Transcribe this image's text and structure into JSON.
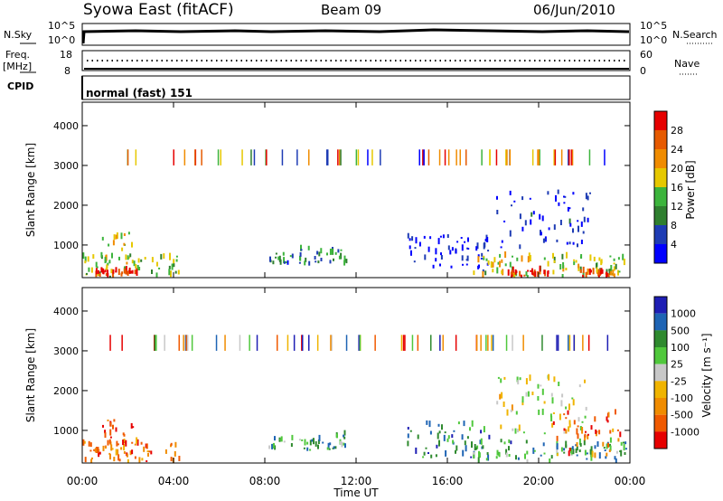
{
  "header": {
    "title": "Syowa East (fitACF)",
    "beam": "Beam 09",
    "date": "06/Jun/2010"
  },
  "top_panels": {
    "nsky_label": "N.Sky",
    "nsearch_label": "N.Search",
    "nsky_ticks": [
      "10^5",
      "10^0"
    ],
    "nsearch_ticks": [
      "10^5",
      "10^0"
    ],
    "freq_label": "Freq.",
    "freq_unit": "[MHz]",
    "freq_ticks": [
      "18",
      "8"
    ],
    "nave_label": "Nave",
    "nave_ticks": [
      "60",
      "0"
    ],
    "cpid_label": "CPID",
    "cpid_value": "normal (fast) 151"
  },
  "colors": {
    "power": [
      "#0000ff",
      "#1e3cb4",
      "#2f7f2f",
      "#3cb43c",
      "#e6c800",
      "#f08c00",
      "#e65a00",
      "#e60000"
    ],
    "velocity": [
      "#e60000",
      "#f05a00",
      "#f08c00",
      "#f0b400",
      "#c8c8c8",
      "#50c83c",
      "#2f8a2f",
      "#1e64b4",
      "#1e1eb4"
    ]
  },
  "chart_data": [
    {
      "type": "heatmap",
      "name": "power",
      "xlabel": "Time UT",
      "ylabel": "Slant Range [km]",
      "x_ticks": [
        "00:00",
        "04:00",
        "08:00",
        "12:00",
        "16:00",
        "20:00",
        "00:00"
      ],
      "y_ticks": [
        "1000",
        "2000",
        "3000",
        "4000"
      ],
      "xlim_hours": [
        0,
        24
      ],
      "ylim_km": [
        180,
        4590
      ],
      "colorbar": {
        "label": "Power [dB]",
        "ticks": [
          "4",
          "8",
          "12",
          "16",
          "20",
          "24",
          "28"
        ],
        "range": [
          0,
          30
        ]
      },
      "regions": [
        {
          "t0": 0.0,
          "t1": 4.3,
          "r0": 180,
          "r1": 700,
          "level": 0.45
        },
        {
          "t0": 0.8,
          "t1": 2.2,
          "r0": 500,
          "r1": 1300,
          "level": 0.55
        },
        {
          "t0": 0.5,
          "t1": 2.4,
          "r0": 180,
          "r1": 330,
          "level": 0.92
        },
        {
          "t0": 8.1,
          "t1": 9.2,
          "r0": 500,
          "r1": 760,
          "level": 0.25
        },
        {
          "t0": 9.5,
          "t1": 11.6,
          "r0": 480,
          "r1": 880,
          "level": 0.3
        },
        {
          "t0": 14.2,
          "t1": 17.8,
          "r0": 300,
          "r1": 1200,
          "level": 0.08
        },
        {
          "t0": 17.0,
          "t1": 23.8,
          "r0": 180,
          "r1": 700,
          "level": 0.5
        },
        {
          "t0": 18.1,
          "t1": 22.3,
          "r0": 900,
          "r1": 2300,
          "level": 0.1
        },
        {
          "t0": 18.6,
          "t1": 20.5,
          "r0": 180,
          "r1": 330,
          "level": 0.95
        },
        {
          "t0": 21.8,
          "t1": 23.4,
          "r0": 180,
          "r1": 330,
          "level": 0.9
        }
      ]
    },
    {
      "type": "heatmap",
      "name": "velocity",
      "xlabel": "Time UT",
      "ylabel": "Slant Range [km]",
      "x_ticks": [
        "00:00",
        "04:00",
        "08:00",
        "12:00",
        "16:00",
        "20:00",
        "00:00"
      ],
      "y_ticks": [
        "1000",
        "2000",
        "3000",
        "4000"
      ],
      "xlim_hours": [
        0,
        24
      ],
      "ylim_km": [
        180,
        4590
      ],
      "colorbar": {
        "label": "Velocity [m s⁻¹]",
        "ticks": [
          "1000",
          "500",
          "100",
          "25",
          "-25",
          "-100",
          "-500",
          "-1000"
        ],
        "range": [
          -1500,
          1500
        ]
      },
      "regions": [
        {
          "t0": 0.0,
          "t1": 4.3,
          "r0": 180,
          "r1": 700,
          "level": 0.2
        },
        {
          "t0": 0.8,
          "t1": 2.2,
          "r0": 500,
          "r1": 1300,
          "level": 0.12
        },
        {
          "t0": 8.1,
          "t1": 9.2,
          "r0": 500,
          "r1": 760,
          "level": 0.65
        },
        {
          "t0": 9.5,
          "t1": 11.6,
          "r0": 480,
          "r1": 880,
          "level": 0.7
        },
        {
          "t0": 14.2,
          "t1": 17.8,
          "r0": 300,
          "r1": 1200,
          "level": 0.75
        },
        {
          "t0": 17.0,
          "t1": 23.8,
          "r0": 180,
          "r1": 700,
          "level": 0.72
        },
        {
          "t0": 18.1,
          "t1": 22.3,
          "r0": 900,
          "r1": 2300,
          "level": 0.5
        },
        {
          "t0": 20.6,
          "t1": 23.6,
          "r0": 300,
          "r1": 1400,
          "level": 0.2
        }
      ]
    }
  ]
}
